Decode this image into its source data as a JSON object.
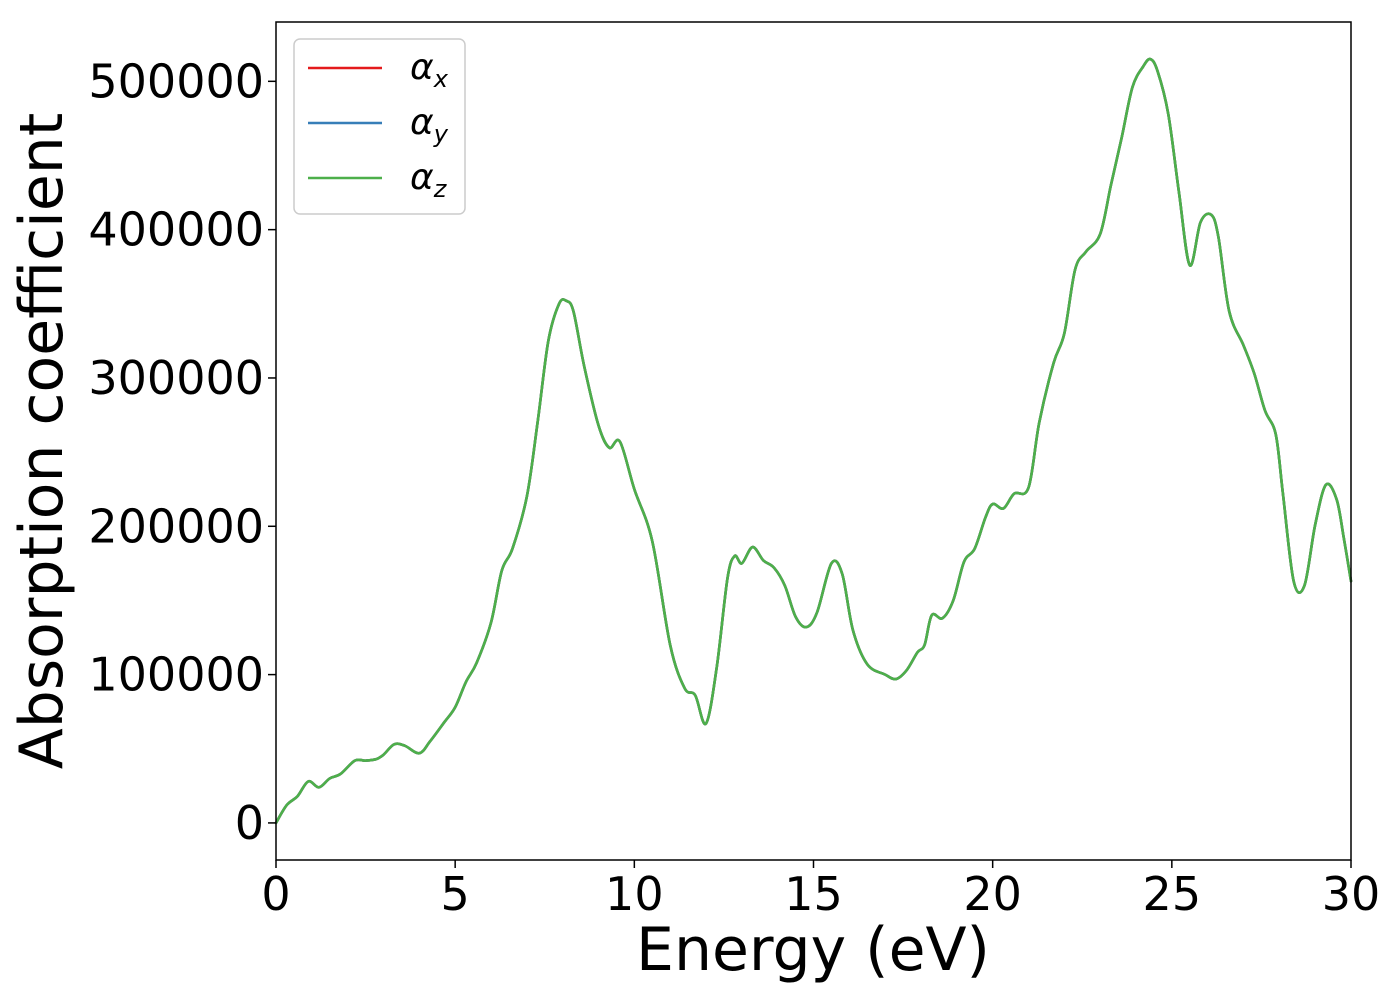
{
  "chart_data": {
    "type": "line",
    "xlabel": "Energy (eV)",
    "ylabel": "Absorption coefficient",
    "xlim": [
      0,
      30
    ],
    "ylim": [
      -25000,
      540000
    ],
    "xticks": [
      "0",
      "5",
      "10",
      "15",
      "20",
      "25",
      "30"
    ],
    "yticks": [
      "0",
      "100000",
      "200000",
      "300000",
      "400000",
      "500000"
    ],
    "grid": false,
    "legend_placement": "upper-left",
    "x": [
      0,
      0.3,
      0.6,
      0.9,
      1.2,
      1.5,
      1.8,
      2.2,
      2.5,
      2.8,
      3.0,
      3.3,
      3.6,
      4.0,
      4.3,
      4.7,
      5.0,
      5.3,
      5.6,
      6.0,
      6.3,
      6.6,
      7.0,
      7.3,
      7.6,
      7.9,
      8.1,
      8.3,
      8.6,
      9.0,
      9.3,
      9.6,
      10.0,
      10.5,
      11.0,
      11.4,
      11.7,
      12.0,
      12.3,
      12.6,
      12.8,
      13.0,
      13.3,
      13.6,
      13.9,
      14.2,
      14.5,
      14.8,
      15.1,
      15.5,
      15.8,
      16.1,
      16.5,
      17.0,
      17.3,
      17.6,
      17.9,
      18.1,
      18.3,
      18.6,
      18.9,
      19.2,
      19.5,
      19.8,
      20.0,
      20.3,
      20.6,
      21.0,
      21.3,
      21.7,
      22.0,
      22.3,
      22.6,
      23.0,
      23.3,
      23.6,
      23.9,
      24.2,
      24.4,
      24.6,
      24.9,
      25.2,
      25.5,
      25.8,
      26.1,
      26.3,
      26.6,
      27.0,
      27.3,
      27.6,
      27.9,
      28.1,
      28.4,
      28.7,
      29.0,
      29.3,
      29.6,
      29.8,
      30.0
    ],
    "series": [
      {
        "name": "αx",
        "name_base": "α",
        "name_sub": "x",
        "color": "#e41a1c",
        "values": [
          0,
          12000,
          18000,
          28000,
          24000,
          30000,
          33000,
          42000,
          42000,
          43000,
          46000,
          53000,
          52000,
          47000,
          55000,
          68000,
          78000,
          95000,
          108000,
          135000,
          170000,
          185000,
          220000,
          270000,
          325000,
          350000,
          352000,
          345000,
          308000,
          268000,
          253000,
          257000,
          225000,
          190000,
          120000,
          91000,
          86000,
          67000,
          105000,
          165000,
          180000,
          175000,
          186000,
          177000,
          172000,
          160000,
          139000,
          132000,
          142000,
          175000,
          168000,
          130000,
          107000,
          100000,
          97000,
          103000,
          115000,
          120000,
          140000,
          138000,
          150000,
          176000,
          185000,
          206000,
          215000,
          212000,
          222000,
          226000,
          270000,
          310000,
          330000,
          373000,
          385000,
          397000,
          430000,
          462000,
          496000,
          510000,
          515000,
          507000,
          478000,
          425000,
          376000,
          405000,
          410000,
          395000,
          345000,
          322000,
          303000,
          278000,
          262000,
          222000,
          163000,
          160000,
          201000,
          228000,
          218000,
          192000,
          163000
        ]
      },
      {
        "name": "αy",
        "name_base": "α",
        "name_sub": "y",
        "color": "#377eb8",
        "values": [
          0,
          12000,
          18000,
          28000,
          24000,
          30000,
          33000,
          42000,
          42000,
          43000,
          46000,
          53000,
          52000,
          47000,
          55000,
          68000,
          78000,
          95000,
          108000,
          135000,
          170000,
          185000,
          220000,
          270000,
          325000,
          350000,
          352000,
          345000,
          308000,
          268000,
          253000,
          257000,
          225000,
          190000,
          120000,
          91000,
          86000,
          67000,
          105000,
          165000,
          180000,
          175000,
          186000,
          177000,
          172000,
          160000,
          139000,
          132000,
          142000,
          175000,
          168000,
          130000,
          107000,
          100000,
          97000,
          103000,
          115000,
          120000,
          140000,
          138000,
          150000,
          176000,
          185000,
          206000,
          215000,
          212000,
          222000,
          226000,
          270000,
          310000,
          330000,
          373000,
          385000,
          397000,
          430000,
          462000,
          496000,
          510000,
          515000,
          507000,
          478000,
          425000,
          376000,
          405000,
          410000,
          395000,
          345000,
          322000,
          303000,
          278000,
          262000,
          222000,
          163000,
          160000,
          201000,
          228000,
          218000,
          192000,
          163000
        ]
      },
      {
        "name": "αz",
        "name_base": "α",
        "name_sub": "z",
        "color": "#4daf4a",
        "values": [
          0,
          12000,
          18000,
          28000,
          24000,
          30000,
          33000,
          42000,
          42000,
          43000,
          46000,
          53000,
          52000,
          47000,
          55000,
          68000,
          78000,
          95000,
          108000,
          135000,
          170000,
          185000,
          220000,
          270000,
          325000,
          350000,
          352000,
          345000,
          308000,
          268000,
          253000,
          257000,
          225000,
          190000,
          120000,
          91000,
          86000,
          67000,
          105000,
          165000,
          180000,
          175000,
          186000,
          177000,
          172000,
          160000,
          139000,
          132000,
          142000,
          175000,
          168000,
          130000,
          107000,
          100000,
          97000,
          103000,
          115000,
          120000,
          140000,
          138000,
          150000,
          176000,
          185000,
          206000,
          215000,
          212000,
          222000,
          226000,
          270000,
          310000,
          330000,
          373000,
          385000,
          397000,
          430000,
          462000,
          496000,
          510000,
          515000,
          507000,
          478000,
          425000,
          376000,
          405000,
          410000,
          395000,
          345000,
          322000,
          303000,
          278000,
          262000,
          222000,
          163000,
          160000,
          201000,
          228000,
          218000,
          192000,
          163000
        ]
      }
    ]
  }
}
